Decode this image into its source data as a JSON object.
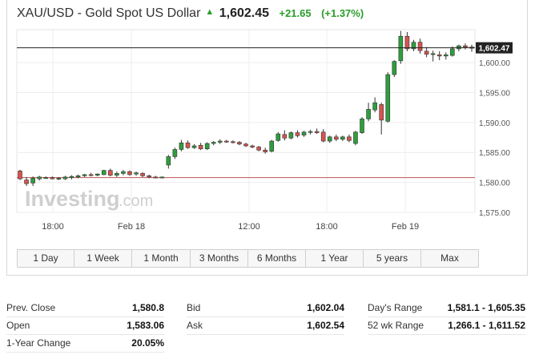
{
  "header": {
    "symbol": "XAU/USD - Gold Spot US Dollar",
    "arrow": "▲",
    "price": "1,602.45",
    "change": "+21.65",
    "change_pct": "(+1.37%)",
    "up_color": "#2a9d2a"
  },
  "watermark": {
    "brand": "Investing",
    "suffix": ".com"
  },
  "chart_data": {
    "type": "candlestick",
    "y_ticks": [
      "1,600.00",
      "1,595.00",
      "1,590.00",
      "1,585.00",
      "1,580.00",
      "1,575.00"
    ],
    "x_ticks": [
      "18:00",
      "Feb 18",
      "12:00",
      "18:00",
      "Feb 19"
    ],
    "ylim": [
      1575,
      1605.5
    ],
    "current_price_label": "1,602.47",
    "current_price": 1602.47,
    "prev_close_line": 1580.8,
    "up_color": "#2e9e3c",
    "down_color": "#d9534f",
    "candles": [
      {
        "o": 1581.9,
        "h": 1582.1,
        "l": 1580.4,
        "c": 1580.6
      },
      {
        "o": 1580.4,
        "h": 1580.9,
        "l": 1579.4,
        "c": 1579.8
      },
      {
        "o": 1579.9,
        "h": 1581.0,
        "l": 1579.4,
        "c": 1580.7
      },
      {
        "o": 1580.6,
        "h": 1581.1,
        "l": 1580.3,
        "c": 1580.9
      },
      {
        "o": 1580.8,
        "h": 1581.0,
        "l": 1580.6,
        "c": 1580.8
      },
      {
        "o": 1580.8,
        "h": 1581.0,
        "l": 1580.5,
        "c": 1580.6
      },
      {
        "o": 1580.6,
        "h": 1580.9,
        "l": 1580.4,
        "c": 1580.7
      },
      {
        "o": 1580.6,
        "h": 1581.1,
        "l": 1580.4,
        "c": 1580.9
      },
      {
        "o": 1580.8,
        "h": 1581.2,
        "l": 1580.5,
        "c": 1581.0
      },
      {
        "o": 1580.9,
        "h": 1581.3,
        "l": 1580.7,
        "c": 1581.1
      },
      {
        "o": 1581.1,
        "h": 1581.4,
        "l": 1580.9,
        "c": 1581.3
      },
      {
        "o": 1581.3,
        "h": 1581.6,
        "l": 1581.0,
        "c": 1581.2
      },
      {
        "o": 1581.2,
        "h": 1581.5,
        "l": 1581.0,
        "c": 1581.4
      },
      {
        "o": 1581.3,
        "h": 1582.1,
        "l": 1581.2,
        "c": 1582.0
      },
      {
        "o": 1582.0,
        "h": 1582.3,
        "l": 1581.0,
        "c": 1581.2
      },
      {
        "o": 1581.2,
        "h": 1581.8,
        "l": 1580.9,
        "c": 1581.5
      },
      {
        "o": 1581.5,
        "h": 1582.1,
        "l": 1581.2,
        "c": 1581.8
      },
      {
        "o": 1581.8,
        "h": 1582.0,
        "l": 1581.1,
        "c": 1581.3
      },
      {
        "o": 1581.4,
        "h": 1581.8,
        "l": 1581.1,
        "c": 1581.6
      },
      {
        "o": 1581.5,
        "h": 1581.7,
        "l": 1580.9,
        "c": 1581.1
      },
      {
        "o": 1581.1,
        "h": 1581.3,
        "l": 1580.7,
        "c": 1580.9
      },
      {
        "o": 1580.9,
        "h": 1581.1,
        "l": 1580.7,
        "c": 1580.8
      },
      {
        "o": 1580.8,
        "h": 1581.0,
        "l": 1580.7,
        "c": 1580.9
      },
      {
        "o": 1582.9,
        "h": 1584.6,
        "l": 1582.3,
        "c": 1584.3
      },
      {
        "o": 1584.3,
        "h": 1585.8,
        "l": 1583.9,
        "c": 1585.5
      },
      {
        "o": 1585.5,
        "h": 1587.1,
        "l": 1585.2,
        "c": 1586.6
      },
      {
        "o": 1586.6,
        "h": 1587.0,
        "l": 1585.6,
        "c": 1585.8
      },
      {
        "o": 1585.8,
        "h": 1586.4,
        "l": 1585.6,
        "c": 1586.1
      },
      {
        "o": 1586.2,
        "h": 1586.6,
        "l": 1585.4,
        "c": 1585.6
      },
      {
        "o": 1585.6,
        "h": 1586.7,
        "l": 1585.4,
        "c": 1586.5
      },
      {
        "o": 1586.5,
        "h": 1586.9,
        "l": 1586.2,
        "c": 1586.7
      },
      {
        "o": 1586.7,
        "h": 1587.2,
        "l": 1586.4,
        "c": 1586.9
      },
      {
        "o": 1586.9,
        "h": 1587.1,
        "l": 1586.6,
        "c": 1586.8
      },
      {
        "o": 1586.8,
        "h": 1587.0,
        "l": 1586.5,
        "c": 1586.7
      },
      {
        "o": 1586.7,
        "h": 1586.9,
        "l": 1586.2,
        "c": 1586.4
      },
      {
        "o": 1586.4,
        "h": 1586.6,
        "l": 1585.9,
        "c": 1586.1
      },
      {
        "o": 1586.1,
        "h": 1586.3,
        "l": 1585.7,
        "c": 1585.9
      },
      {
        "o": 1585.9,
        "h": 1586.1,
        "l": 1585.2,
        "c": 1585.4
      },
      {
        "o": 1585.4,
        "h": 1585.8,
        "l": 1584.8,
        "c": 1585.1
      },
      {
        "o": 1585.2,
        "h": 1587.1,
        "l": 1585.0,
        "c": 1586.9
      },
      {
        "o": 1587.0,
        "h": 1588.4,
        "l": 1586.8,
        "c": 1588.1
      },
      {
        "o": 1588.0,
        "h": 1588.7,
        "l": 1587.0,
        "c": 1587.4
      },
      {
        "o": 1587.4,
        "h": 1588.5,
        "l": 1587.2,
        "c": 1588.3
      },
      {
        "o": 1588.3,
        "h": 1588.7,
        "l": 1587.5,
        "c": 1587.8
      },
      {
        "o": 1587.9,
        "h": 1588.6,
        "l": 1587.6,
        "c": 1588.4
      },
      {
        "o": 1588.4,
        "h": 1588.8,
        "l": 1588.0,
        "c": 1588.5
      },
      {
        "o": 1588.5,
        "h": 1589.0,
        "l": 1588.1,
        "c": 1588.3
      },
      {
        "o": 1588.4,
        "h": 1588.9,
        "l": 1586.7,
        "c": 1586.9
      },
      {
        "o": 1586.9,
        "h": 1587.8,
        "l": 1586.6,
        "c": 1587.6
      },
      {
        "o": 1587.6,
        "h": 1588.0,
        "l": 1586.9,
        "c": 1587.2
      },
      {
        "o": 1587.2,
        "h": 1587.8,
        "l": 1586.9,
        "c": 1587.6
      },
      {
        "o": 1587.6,
        "h": 1588.0,
        "l": 1586.7,
        "c": 1587.0
      },
      {
        "o": 1586.5,
        "h": 1588.6,
        "l": 1586.2,
        "c": 1588.4
      },
      {
        "o": 1588.3,
        "h": 1590.9,
        "l": 1588.1,
        "c": 1590.6
      },
      {
        "o": 1590.6,
        "h": 1593.3,
        "l": 1590.2,
        "c": 1592.2
      },
      {
        "o": 1592.1,
        "h": 1594.2,
        "l": 1591.7,
        "c": 1593.3
      },
      {
        "o": 1593.0,
        "h": 1593.3,
        "l": 1588.0,
        "c": 1590.4
      },
      {
        "o": 1590.2,
        "h": 1598.4,
        "l": 1590.0,
        "c": 1598.0
      },
      {
        "o": 1598.0,
        "h": 1600.4,
        "l": 1597.6,
        "c": 1600.2
      },
      {
        "o": 1600.3,
        "h": 1605.3,
        "l": 1599.8,
        "c": 1604.4
      },
      {
        "o": 1604.4,
        "h": 1605.1,
        "l": 1601.9,
        "c": 1602.3
      },
      {
        "o": 1602.3,
        "h": 1603.8,
        "l": 1601.9,
        "c": 1603.4
      },
      {
        "o": 1603.4,
        "h": 1604.0,
        "l": 1601.5,
        "c": 1602.0
      },
      {
        "o": 1601.9,
        "h": 1602.6,
        "l": 1600.9,
        "c": 1601.4
      },
      {
        "o": 1601.4,
        "h": 1602.0,
        "l": 1600.2,
        "c": 1601.5
      },
      {
        "o": 1601.3,
        "h": 1601.9,
        "l": 1600.4,
        "c": 1601.1
      },
      {
        "o": 1601.1,
        "h": 1601.7,
        "l": 1600.5,
        "c": 1601.3
      },
      {
        "o": 1601.2,
        "h": 1602.7,
        "l": 1601.0,
        "c": 1602.3
      },
      {
        "o": 1602.3,
        "h": 1603.0,
        "l": 1601.9,
        "c": 1602.8
      },
      {
        "o": 1602.8,
        "h": 1603.2,
        "l": 1602.2,
        "c": 1602.6
      },
      {
        "o": 1602.6,
        "h": 1603.0,
        "l": 1601.8,
        "c": 1602.4
      }
    ]
  },
  "ranges": [
    "1 Day",
    "1 Week",
    "1 Month",
    "3 Months",
    "6 Months",
    "1 Year",
    "5 years",
    "Max"
  ],
  "stats": {
    "col1": [
      {
        "label": "Prev. Close",
        "value": "1,580.8"
      },
      {
        "label": "Open",
        "value": "1,583.06"
      },
      {
        "label": "1-Year Change",
        "value": "20.05%"
      }
    ],
    "col2": [
      {
        "label": "Bid",
        "value": "1,602.04"
      },
      {
        "label": "Ask",
        "value": "1,602.54"
      }
    ],
    "col3": [
      {
        "label": "Day's Range",
        "value": "1,581.1 - 1,605.35"
      },
      {
        "label": "52 wk Range",
        "value": "1,266.1 - 1,611.52"
      }
    ]
  }
}
